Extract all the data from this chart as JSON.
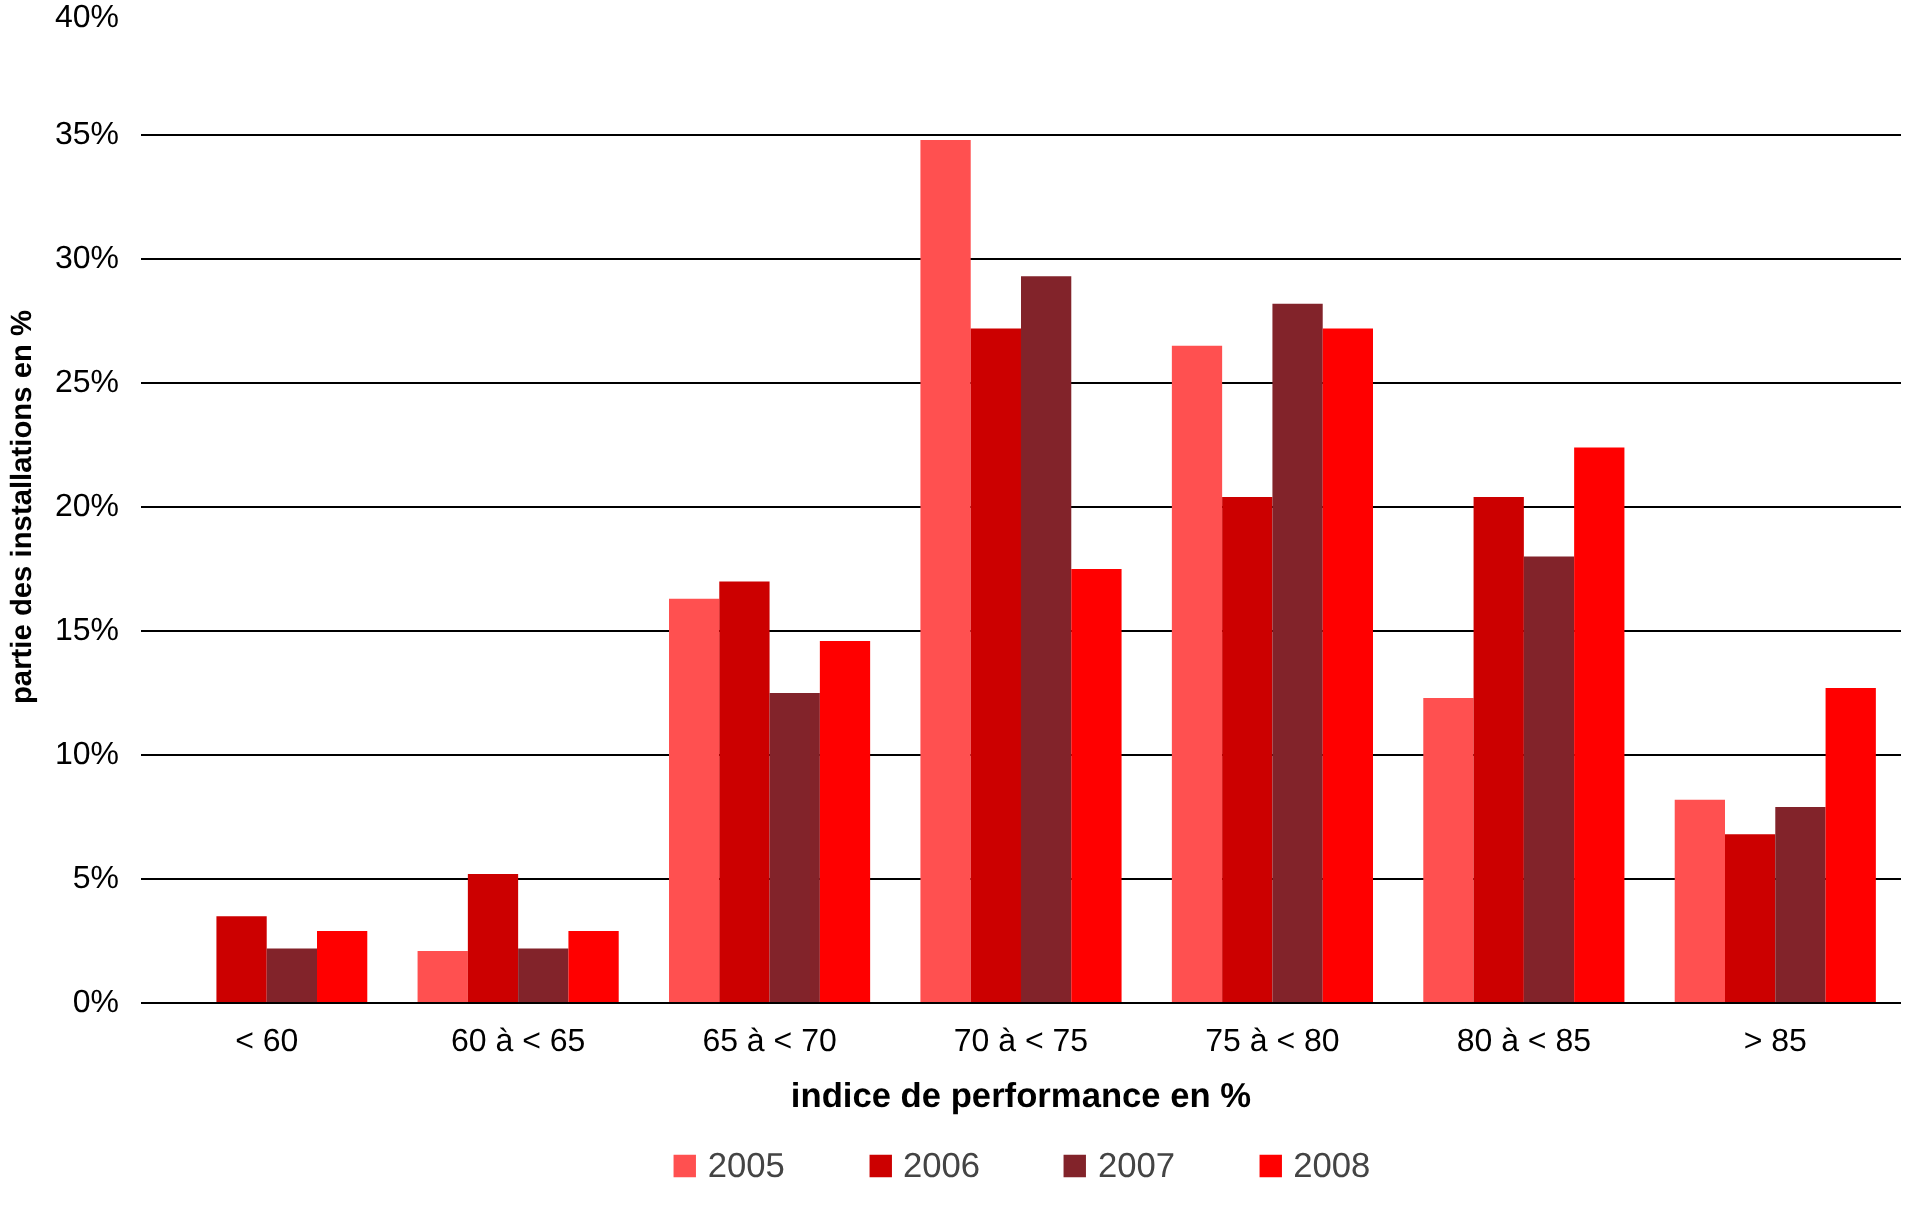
{
  "chart_data": {
    "type": "bar",
    "xlabel": "indice de performance en %",
    "ylabel": "partie des installations en %",
    "categories": [
      "< 60",
      "60 à < 65",
      "65 à < 70",
      "70 à < 75",
      "75 à < 80",
      "80 à < 85",
      "> 85"
    ],
    "series": [
      {
        "name": "2005",
        "color": "#ff5050",
        "values": [
          0,
          2.1,
          16.3,
          34.8,
          26.5,
          12.3,
          8.2
        ]
      },
      {
        "name": "2006",
        "color": "#cc0000",
        "values": [
          3.5,
          5.2,
          17.0,
          27.2,
          20.4,
          20.4,
          6.8
        ]
      },
      {
        "name": "2007",
        "color": "#82232a",
        "values": [
          2.2,
          2.2,
          12.5,
          29.3,
          28.2,
          18.0,
          7.9
        ]
      },
      {
        "name": "2008",
        "color": "#ff0000",
        "values": [
          2.9,
          2.9,
          14.6,
          17.5,
          27.2,
          22.4,
          12.7
        ]
      }
    ],
    "ylim": [
      0,
      40
    ],
    "yticks": [
      {
        "value": 0,
        "label": "0%"
      },
      {
        "value": 5,
        "label": "5%"
      },
      {
        "value": 10,
        "label": "10%"
      },
      {
        "value": 15,
        "label": "15%"
      },
      {
        "value": 20,
        "label": "20%"
      },
      {
        "value": 25,
        "label": "25%"
      },
      {
        "value": 30,
        "label": "30%"
      },
      {
        "value": 35,
        "label": "35%"
      },
      {
        "value": 40,
        "label": "40%"
      }
    ],
    "grid": "y",
    "legend": "bottom"
  }
}
